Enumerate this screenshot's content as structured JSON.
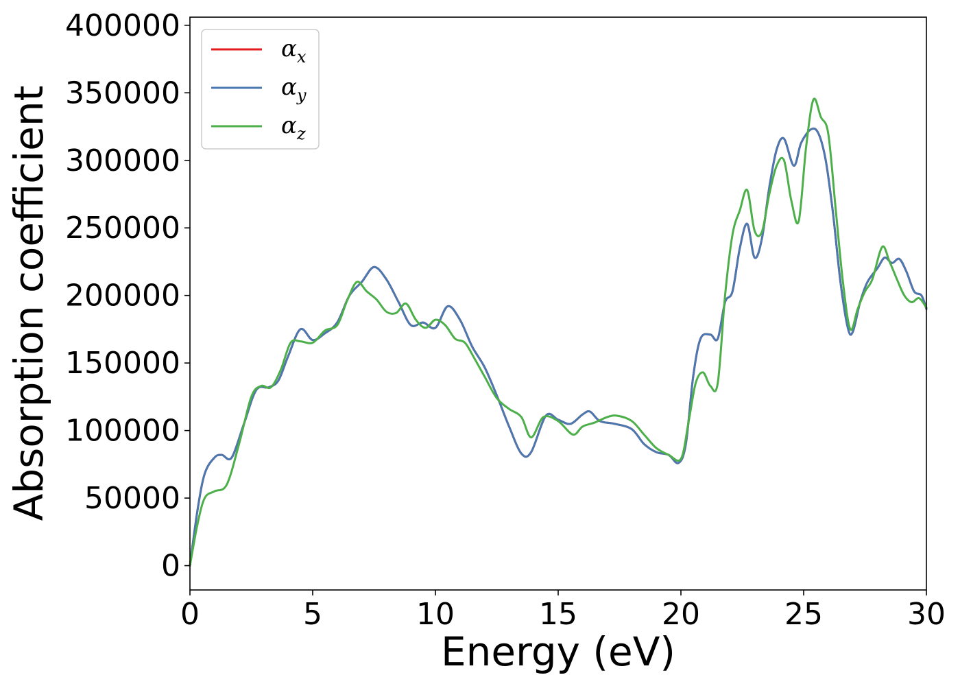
{
  "chart_data": {
    "type": "line",
    "title": "",
    "xlabel": "Energy (eV)",
    "ylabel": "Absorption coefficient",
    "xlim": [
      0,
      30
    ],
    "ylim": [
      -18000,
      406000
    ],
    "xticks": [
      0,
      5,
      10,
      15,
      20,
      25,
      30
    ],
    "yticks": [
      0,
      50000,
      100000,
      150000,
      200000,
      250000,
      300000,
      350000,
      400000
    ],
    "xtick_labels": [
      "0",
      "5",
      "10",
      "15",
      "20",
      "25",
      "30"
    ],
    "ytick_labels": [
      "0",
      "50000",
      "100000",
      "150000",
      "200000",
      "250000",
      "300000",
      "350000",
      "400000"
    ],
    "grid": false,
    "legend_position": "top-left",
    "series": [
      {
        "name": "αx",
        "symbol": "α",
        "subscript": "x",
        "color": "#e41a1c",
        "x": [
          0,
          0.3,
          0.6,
          1.0,
          1.3,
          1.7,
          2.2,
          2.7,
          3.2,
          3.6,
          4.0,
          4.5,
          5.0,
          5.5,
          6.0,
          6.5,
          7.0,
          7.5,
          8.0,
          8.5,
          9.0,
          9.5,
          10.0,
          10.5,
          11.0,
          11.5,
          12.0,
          12.5,
          13.0,
          13.5,
          13.9,
          14.5,
          15.0,
          15.5,
          16.0,
          16.3,
          16.7,
          17.3,
          18.0,
          18.5,
          19.0,
          19.5,
          19.9,
          20.2,
          20.5,
          20.8,
          21.2,
          21.5,
          21.8,
          22.1,
          22.4,
          22.7,
          23.0,
          23.3,
          23.6,
          23.9,
          24.2,
          24.6,
          24.9,
          25.3,
          25.6,
          25.9,
          26.2,
          26.5,
          26.8,
          27.0,
          27.3,
          27.6,
          28.0,
          28.3,
          28.6,
          28.9,
          29.2,
          29.5,
          29.8,
          30.0
        ],
        "values": [
          0,
          40000,
          68000,
          80000,
          82000,
          80000,
          105000,
          130000,
          132000,
          137000,
          155000,
          175000,
          167000,
          172000,
          180000,
          200000,
          210000,
          221000,
          212000,
          195000,
          178000,
          180000,
          176000,
          192000,
          182000,
          162000,
          147000,
          126000,
          103000,
          83000,
          84000,
          111000,
          108000,
          105000,
          112000,
          114000,
          107000,
          105000,
          101000,
          90000,
          84000,
          82000,
          76000,
          90000,
          140000,
          168000,
          171000,
          168000,
          195000,
          203000,
          235000,
          253000,
          228000,
          242000,
          280000,
          308000,
          316000,
          296000,
          313000,
          323000,
          320000,
          300000,
          260000,
          210000,
          176000,
          173000,
          195000,
          210000,
          220000,
          228000,
          224000,
          227000,
          217000,
          203000,
          200000,
          190000
        ]
      },
      {
        "name": "αy",
        "symbol": "α",
        "subscript": "y",
        "color": "#4a78b0",
        "x": [
          0,
          0.3,
          0.6,
          1.0,
          1.3,
          1.7,
          2.2,
          2.7,
          3.2,
          3.6,
          4.0,
          4.5,
          5.0,
          5.5,
          6.0,
          6.5,
          7.0,
          7.5,
          8.0,
          8.5,
          9.0,
          9.5,
          10.0,
          10.5,
          11.0,
          11.5,
          12.0,
          12.5,
          13.0,
          13.5,
          13.9,
          14.5,
          15.0,
          15.5,
          16.0,
          16.3,
          16.7,
          17.3,
          18.0,
          18.5,
          19.0,
          19.5,
          19.9,
          20.2,
          20.5,
          20.8,
          21.2,
          21.5,
          21.8,
          22.1,
          22.4,
          22.7,
          23.0,
          23.3,
          23.6,
          23.9,
          24.2,
          24.6,
          24.9,
          25.3,
          25.6,
          25.9,
          26.2,
          26.5,
          26.8,
          27.0,
          27.3,
          27.6,
          28.0,
          28.3,
          28.6,
          28.9,
          29.2,
          29.5,
          29.8,
          30.0
        ],
        "values": [
          0,
          40000,
          68000,
          80000,
          82000,
          80000,
          105000,
          130000,
          132000,
          137000,
          155000,
          175000,
          167000,
          172000,
          180000,
          200000,
          210000,
          221000,
          212000,
          195000,
          178000,
          180000,
          176000,
          192000,
          182000,
          162000,
          147000,
          126000,
          103000,
          83000,
          84000,
          111000,
          108000,
          105000,
          112000,
          114000,
          107000,
          105000,
          101000,
          90000,
          84000,
          82000,
          76000,
          90000,
          140000,
          168000,
          171000,
          168000,
          195000,
          203000,
          235000,
          253000,
          228000,
          242000,
          280000,
          308000,
          316000,
          296000,
          313000,
          323000,
          320000,
          300000,
          260000,
          210000,
          176000,
          173000,
          195000,
          210000,
          220000,
          228000,
          224000,
          227000,
          217000,
          203000,
          200000,
          190000
        ]
      },
      {
        "name": "αz",
        "symbol": "α",
        "subscript": "z",
        "color": "#4daf4a",
        "x": [
          0,
          0.3,
          0.6,
          1.0,
          1.5,
          2.0,
          2.5,
          2.9,
          3.3,
          3.7,
          4.1,
          4.5,
          5.0,
          5.5,
          6.0,
          6.4,
          6.8,
          7.2,
          7.6,
          8.0,
          8.4,
          8.8,
          9.2,
          9.6,
          10.0,
          10.4,
          10.8,
          11.2,
          11.6,
          12.0,
          12.5,
          13.0,
          13.5,
          13.9,
          14.4,
          15.0,
          15.6,
          16.0,
          16.5,
          17.0,
          17.4,
          18.0,
          18.5,
          19.0,
          19.5,
          20.0,
          20.3,
          20.6,
          20.9,
          21.2,
          21.5,
          21.8,
          22.1,
          22.4,
          22.7,
          23.0,
          23.3,
          23.6,
          23.9,
          24.2,
          24.5,
          24.8,
          25.1,
          25.4,
          25.7,
          26.0,
          26.3,
          26.6,
          26.9,
          27.2,
          27.5,
          27.8,
          28.2,
          28.5,
          28.8,
          29.1,
          29.4,
          29.7,
          30.0
        ],
        "values": [
          0,
          30000,
          50000,
          55000,
          60000,
          90000,
          125000,
          133000,
          132000,
          145000,
          165000,
          166000,
          165000,
          174000,
          178000,
          196000,
          210000,
          203000,
          197000,
          188000,
          187000,
          194000,
          182000,
          176000,
          182000,
          178000,
          168000,
          165000,
          153000,
          140000,
          124000,
          116000,
          110000,
          95000,
          110000,
          107000,
          97000,
          103000,
          106000,
          110000,
          111000,
          107000,
          97000,
          87000,
          82000,
          79000,
          105000,
          135000,
          143000,
          133000,
          135000,
          200000,
          245000,
          263000,
          278000,
          248000,
          247000,
          275000,
          296000,
          300000,
          270000,
          255000,
          310000,
          345000,
          332000,
          320000,
          265000,
          210000,
          175000,
          190000,
          203000,
          212000,
          236000,
          225000,
          212000,
          200000,
          195000,
          198000,
          191000
        ]
      }
    ]
  }
}
